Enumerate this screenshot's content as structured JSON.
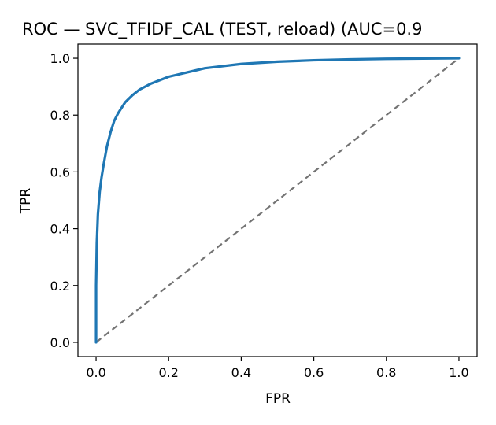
{
  "chart_data": {
    "type": "line",
    "title": "ROC — SVC_TFIDF_CAL (TEST, reload) (AUC=0.9",
    "xlabel": "FPR",
    "ylabel": "TPR",
    "xlim": [
      -0.05,
      1.05
    ],
    "ylim": [
      -0.05,
      1.05
    ],
    "xticks": [
      0.0,
      0.2,
      0.4,
      0.6,
      0.8,
      1.0
    ],
    "xtick_labels": [
      "0.0",
      "0.2",
      "0.4",
      "0.6",
      "0.8",
      "1.0"
    ],
    "yticks": [
      0.0,
      0.2,
      0.4,
      0.6,
      0.8,
      1.0
    ],
    "ytick_labels": [
      "0.0",
      "0.2",
      "0.4",
      "0.6",
      "0.8",
      "1.0"
    ],
    "grid": false,
    "legend": "none",
    "series": [
      {
        "color": "#1f77b4",
        "style": "solid",
        "x": [
          0.0,
          0.0,
          0.002,
          0.005,
          0.01,
          0.015,
          0.02,
          0.03,
          0.04,
          0.05,
          0.06,
          0.08,
          0.1,
          0.12,
          0.15,
          0.2,
          0.25,
          0.3,
          0.4,
          0.5,
          0.6,
          0.7,
          0.8,
          0.9,
          1.0
        ],
        "y": [
          0.0,
          0.2,
          0.35,
          0.45,
          0.53,
          0.58,
          0.62,
          0.69,
          0.74,
          0.78,
          0.805,
          0.845,
          0.87,
          0.89,
          0.91,
          0.935,
          0.95,
          0.965,
          0.98,
          0.988,
          0.993,
          0.996,
          0.998,
          0.999,
          1.0
        ]
      },
      {
        "color": "#737373",
        "style": "dashed",
        "x": [
          0.0,
          1.0
        ],
        "y": [
          0.0,
          1.0
        ]
      }
    ]
  }
}
